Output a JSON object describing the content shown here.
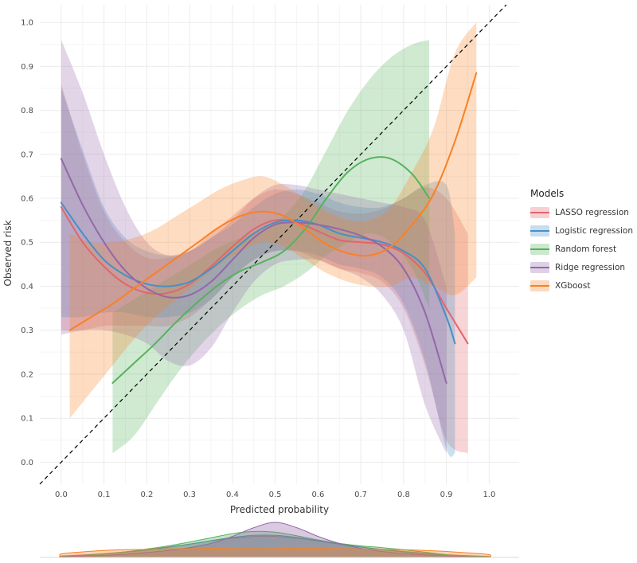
{
  "chart_data": {
    "type": "line",
    "title": "",
    "xlabel": "Predicted probability",
    "ylabel": "Observed risk",
    "xlim": [
      -0.05,
      1.07
    ],
    "ylim": [
      -0.05,
      1.04
    ],
    "x_ticks": [
      "0.0",
      "0.1",
      "0.2",
      "0.3",
      "0.4",
      "0.5",
      "0.6",
      "0.7",
      "0.8",
      "0.9",
      "1.0"
    ],
    "y_ticks": [
      "0.0",
      "0.1",
      "0.2",
      "0.3",
      "0.4",
      "0.5",
      "0.6",
      "0.7",
      "0.8",
      "0.9",
      "1.0"
    ],
    "grid": true,
    "legend_position": "right",
    "reference_line": {
      "style": "dashed",
      "color": "#000000",
      "from": [
        -0.05,
        -0.05
      ],
      "to": [
        1.04,
        1.04
      ],
      "meaning": "perfect calibration y=x"
    },
    "series": [
      {
        "name": "LASSO regression",
        "color": "#E2656C",
        "x": [
          0.0,
          0.05,
          0.1,
          0.15,
          0.2,
          0.25,
          0.3,
          0.35,
          0.4,
          0.45,
          0.5,
          0.55,
          0.6,
          0.65,
          0.7,
          0.75,
          0.8,
          0.85,
          0.9,
          0.95
        ],
        "y": [
          0.58,
          0.5,
          0.445,
          0.405,
          0.385,
          0.385,
          0.405,
          0.445,
          0.49,
          0.53,
          0.55,
          0.545,
          0.525,
          0.505,
          0.5,
          0.495,
          0.475,
          0.43,
          0.35,
          0.27
        ],
        "lo": [
          0.3,
          0.3,
          0.31,
          0.31,
          0.31,
          0.31,
          0.33,
          0.37,
          0.42,
          0.46,
          0.48,
          0.48,
          0.46,
          0.44,
          0.43,
          0.41,
          0.35,
          0.22,
          0.05,
          0.02
        ],
        "hi": [
          0.86,
          0.7,
          0.57,
          0.5,
          0.465,
          0.465,
          0.48,
          0.52,
          0.56,
          0.6,
          0.62,
          0.61,
          0.59,
          0.57,
          0.565,
          0.575,
          0.6,
          0.625,
          0.6,
          0.52
        ]
      },
      {
        "name": "Logistic regression",
        "color": "#4690C6",
        "x": [
          0.0,
          0.05,
          0.1,
          0.15,
          0.2,
          0.25,
          0.3,
          0.35,
          0.4,
          0.45,
          0.5,
          0.55,
          0.6,
          0.65,
          0.7,
          0.75,
          0.8,
          0.85,
          0.9,
          0.92
        ],
        "y": [
          0.59,
          0.52,
          0.46,
          0.425,
          0.405,
          0.4,
          0.41,
          0.44,
          0.48,
          0.52,
          0.545,
          0.55,
          0.54,
          0.52,
          0.51,
          0.5,
          0.48,
          0.44,
          0.33,
          0.27
        ],
        "lo": [
          0.33,
          0.33,
          0.34,
          0.34,
          0.33,
          0.33,
          0.34,
          0.37,
          0.42,
          0.46,
          0.48,
          0.48,
          0.47,
          0.45,
          0.44,
          0.42,
          0.36,
          0.23,
          0.03,
          0.02
        ],
        "hi": [
          0.85,
          0.71,
          0.58,
          0.51,
          0.48,
          0.47,
          0.48,
          0.51,
          0.54,
          0.58,
          0.61,
          0.62,
          0.61,
          0.59,
          0.58,
          0.58,
          0.6,
          0.63,
          0.63,
          0.52
        ]
      },
      {
        "name": "Random forest",
        "color": "#55B25C",
        "x": [
          0.12,
          0.17,
          0.22,
          0.27,
          0.32,
          0.37,
          0.42,
          0.47,
          0.52,
          0.57,
          0.62,
          0.67,
          0.72,
          0.77,
          0.82,
          0.86
        ],
        "y": [
          0.18,
          0.225,
          0.27,
          0.32,
          0.365,
          0.405,
          0.435,
          0.455,
          0.48,
          0.53,
          0.6,
          0.66,
          0.69,
          0.69,
          0.655,
          0.6
        ],
        "lo": [
          0.02,
          0.06,
          0.13,
          0.2,
          0.26,
          0.31,
          0.35,
          0.38,
          0.4,
          0.43,
          0.47,
          0.5,
          0.52,
          0.5,
          0.44,
          0.35
        ],
        "hi": [
          0.34,
          0.37,
          0.4,
          0.43,
          0.46,
          0.49,
          0.51,
          0.53,
          0.56,
          0.62,
          0.71,
          0.8,
          0.87,
          0.92,
          0.95,
          0.96
        ]
      },
      {
        "name": "Ridge regression",
        "color": "#9368A8",
        "x": [
          0.0,
          0.05,
          0.1,
          0.15,
          0.2,
          0.25,
          0.3,
          0.35,
          0.4,
          0.45,
          0.5,
          0.55,
          0.6,
          0.65,
          0.7,
          0.75,
          0.8,
          0.85,
          0.9
        ],
        "y": [
          0.69,
          0.585,
          0.5,
          0.435,
          0.395,
          0.375,
          0.38,
          0.41,
          0.46,
          0.51,
          0.54,
          0.545,
          0.54,
          0.53,
          0.515,
          0.49,
          0.44,
          0.34,
          0.18
        ],
        "lo": [
          0.29,
          0.3,
          0.3,
          0.29,
          0.27,
          0.23,
          0.22,
          0.26,
          0.34,
          0.41,
          0.45,
          0.46,
          0.46,
          0.44,
          0.42,
          0.38,
          0.3,
          0.13,
          0.02
        ],
        "hi": [
          0.96,
          0.84,
          0.7,
          0.58,
          0.5,
          0.47,
          0.48,
          0.51,
          0.55,
          0.6,
          0.63,
          0.63,
          0.62,
          0.61,
          0.6,
          0.59,
          0.58,
          0.55,
          0.4
        ]
      },
      {
        "name": "XGboost",
        "color": "#F98125",
        "x": [
          0.02,
          0.07,
          0.12,
          0.17,
          0.22,
          0.27,
          0.32,
          0.37,
          0.42,
          0.47,
          0.52,
          0.57,
          0.62,
          0.67,
          0.72,
          0.77,
          0.82,
          0.87,
          0.92,
          0.97
        ],
        "y": [
          0.3,
          0.33,
          0.36,
          0.395,
          0.43,
          0.465,
          0.5,
          0.535,
          0.56,
          0.57,
          0.56,
          0.53,
          0.495,
          0.475,
          0.47,
          0.49,
          0.54,
          0.61,
          0.73,
          0.885
        ],
        "lo": [
          0.1,
          0.16,
          0.22,
          0.28,
          0.33,
          0.37,
          0.41,
          0.45,
          0.48,
          0.5,
          0.49,
          0.46,
          0.43,
          0.41,
          0.4,
          0.4,
          0.42,
          0.4,
          0.38,
          0.42
        ],
        "hi": [
          0.52,
          0.5,
          0.5,
          0.51,
          0.53,
          0.56,
          0.59,
          0.62,
          0.64,
          0.65,
          0.63,
          0.6,
          0.57,
          0.55,
          0.55,
          0.58,
          0.66,
          0.76,
          0.93,
          1.0
        ]
      }
    ],
    "density_panel": {
      "description": "distribution of predicted probabilities per model (bottom rug density)",
      "x": [
        0.0,
        0.05,
        0.1,
        0.15,
        0.2,
        0.25,
        0.3,
        0.35,
        0.4,
        0.45,
        0.5,
        0.55,
        0.6,
        0.65,
        0.7,
        0.75,
        0.8,
        0.85,
        0.9,
        0.95,
        1.0
      ],
      "series": [
        {
          "name": "LASSO regression",
          "color": "#E2656C",
          "y": [
            0.04,
            0.07,
            0.11,
            0.16,
            0.22,
            0.3,
            0.38,
            0.47,
            0.55,
            0.6,
            0.6,
            0.55,
            0.47,
            0.38,
            0.3,
            0.23,
            0.17,
            0.12,
            0.08,
            0.05,
            0.03
          ]
        },
        {
          "name": "Logistic regression",
          "color": "#4690C6",
          "y": [
            0.03,
            0.06,
            0.1,
            0.15,
            0.21,
            0.29,
            0.38,
            0.48,
            0.57,
            0.63,
            0.63,
            0.57,
            0.48,
            0.39,
            0.3,
            0.22,
            0.16,
            0.11,
            0.07,
            0.04,
            0.02
          ]
        },
        {
          "name": "Random forest",
          "color": "#55B25C",
          "y": [
            0.03,
            0.06,
            0.1,
            0.16,
            0.24,
            0.33,
            0.44,
            0.56,
            0.68,
            0.74,
            0.72,
            0.62,
            0.5,
            0.4,
            0.33,
            0.28,
            0.22,
            0.15,
            0.08,
            0.04,
            0.02
          ]
        },
        {
          "name": "Ridge regression",
          "color": "#9368A8",
          "y": [
            0.02,
            0.04,
            0.06,
            0.09,
            0.14,
            0.2,
            0.28,
            0.4,
            0.6,
            0.85,
            1.0,
            0.85,
            0.6,
            0.4,
            0.26,
            0.17,
            0.11,
            0.07,
            0.04,
            0.02,
            0.01
          ]
        },
        {
          "name": "XGboost",
          "color": "#F98125",
          "y": [
            0.1,
            0.16,
            0.2,
            0.22,
            0.23,
            0.24,
            0.25,
            0.26,
            0.27,
            0.27,
            0.27,
            0.26,
            0.26,
            0.25,
            0.24,
            0.23,
            0.22,
            0.2,
            0.17,
            0.13,
            0.08
          ]
        }
      ]
    }
  },
  "legend": {
    "title": "Models",
    "items": [
      {
        "label": "LASSO regression",
        "color": "#E2656C"
      },
      {
        "label": "Logistic regression",
        "color": "#4690C6"
      },
      {
        "label": "Random forest",
        "color": "#55B25C"
      },
      {
        "label": "Ridge regression",
        "color": "#9368A8"
      },
      {
        "label": "XGboost",
        "color": "#F98125"
      }
    ]
  }
}
